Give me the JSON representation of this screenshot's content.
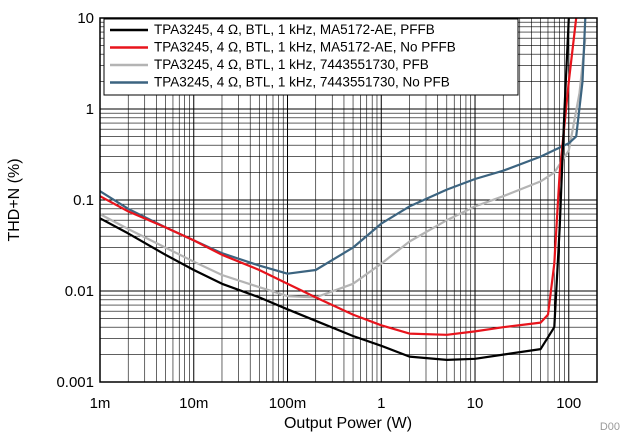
{
  "chart_data": {
    "type": "line",
    "x_scale": "log",
    "y_scale": "log",
    "xlim": [
      0.001,
      200
    ],
    "ylim": [
      0.001,
      10
    ],
    "grid": true,
    "legend_position": "top-right",
    "xlabel": "Output Power (W)",
    "ylabel": "THD+N (%)",
    "x_tick_values": [
      0.001,
      0.01,
      0.1,
      1,
      10,
      100
    ],
    "x_tick_labels": [
      "1m",
      "10m",
      "100m",
      "1",
      "10",
      "100"
    ],
    "y_tick_values": [
      0.001,
      0.01,
      0.1,
      1,
      10
    ],
    "y_tick_labels": [
      "0.001",
      "0.01",
      "0.1",
      "1",
      "10"
    ],
    "footnote": "D00",
    "series": [
      {
        "name": "TPA3245, 4 Ω, BTL, 1 kHz, MA5172-AE, PFFB",
        "color": "#000000",
        "x": [
          0.001,
          0.002,
          0.005,
          0.01,
          0.02,
          0.05,
          0.1,
          0.2,
          0.5,
          1,
          2,
          5,
          10,
          20,
          50,
          70,
          80,
          90,
          100
        ],
        "y": [
          0.063,
          0.043,
          0.025,
          0.017,
          0.012,
          0.0085,
          0.0063,
          0.0047,
          0.0032,
          0.0025,
          0.0019,
          0.00175,
          0.0018,
          0.002,
          0.0023,
          0.004,
          0.05,
          1.0,
          10
        ]
      },
      {
        "name": "TPA3245, 4 Ω, BTL, 1 kHz, MA5172-AE, No PFFB",
        "color": "#e8141c",
        "x": [
          0.001,
          0.002,
          0.005,
          0.01,
          0.02,
          0.05,
          0.1,
          0.2,
          0.5,
          1,
          2,
          5,
          10,
          20,
          50,
          60,
          70,
          80,
          100,
          120
        ],
        "y": [
          0.11,
          0.075,
          0.05,
          0.036,
          0.025,
          0.017,
          0.012,
          0.0085,
          0.0055,
          0.0042,
          0.0034,
          0.0033,
          0.0036,
          0.004,
          0.0045,
          0.0055,
          0.02,
          0.2,
          2.0,
          10
        ]
      },
      {
        "name": "TPA3245, 4 Ω, BTL, 1 kHz, 7443551730, PFB",
        "color": "#b4b4b4",
        "x": [
          0.001,
          0.002,
          0.005,
          0.01,
          0.02,
          0.05,
          0.1,
          0.2,
          0.5,
          1,
          2,
          5,
          10,
          20,
          50,
          70,
          100,
          130,
          150
        ],
        "y": [
          0.07,
          0.048,
          0.03,
          0.021,
          0.015,
          0.011,
          0.0088,
          0.0085,
          0.012,
          0.02,
          0.035,
          0.06,
          0.085,
          0.11,
          0.16,
          0.2,
          0.35,
          1.5,
          6.0
        ]
      },
      {
        "name": "TPA3245, 4 Ω, BTL, 1 kHz, 7443551730, No PFB",
        "color": "#3c6480",
        "x": [
          0.001,
          0.002,
          0.005,
          0.01,
          0.02,
          0.05,
          0.1,
          0.2,
          0.5,
          1,
          2,
          5,
          10,
          20,
          50,
          100,
          120,
          140,
          150
        ],
        "y": [
          0.125,
          0.08,
          0.05,
          0.036,
          0.026,
          0.019,
          0.0155,
          0.017,
          0.03,
          0.055,
          0.085,
          0.13,
          0.17,
          0.21,
          0.3,
          0.42,
          0.5,
          2.0,
          10
        ]
      }
    ]
  }
}
